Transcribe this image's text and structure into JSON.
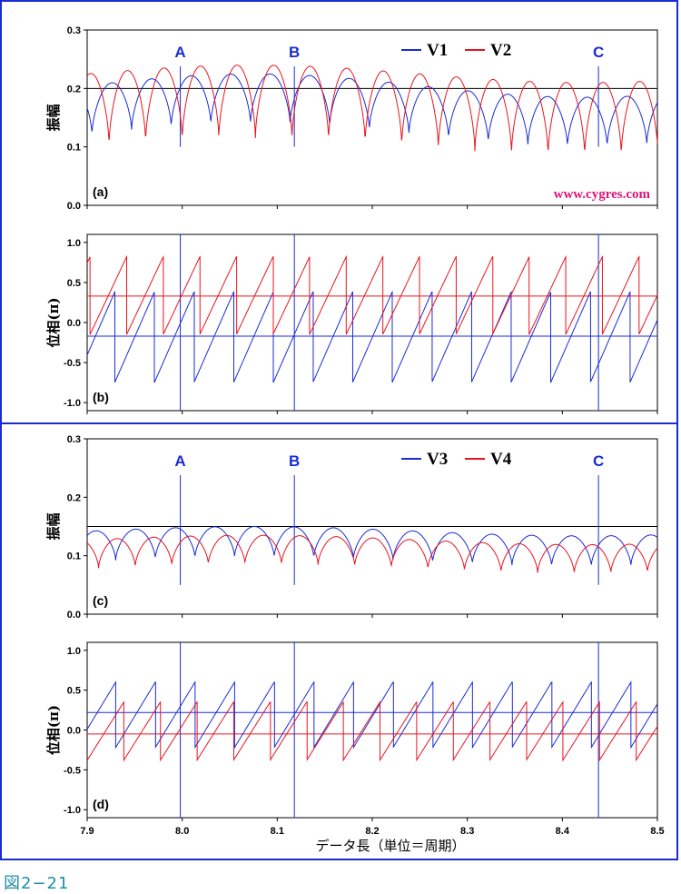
{
  "figure_caption": "図2−21",
  "watermark": "www.cygres.com",
  "x_label": "データ長（単位＝周期）",
  "x_ticks": [
    "7.9",
    "8.0",
    "8.1",
    "8.2",
    "8.3",
    "8.4",
    "8.5"
  ],
  "markers": [
    {
      "label": "A",
      "x": 7.998
    },
    {
      "label": "B",
      "x": 8.118
    },
    {
      "label": "C",
      "x": 8.438
    }
  ],
  "colors": {
    "blue": "#1a2bd6",
    "red": "#e8141e",
    "frame": "#1a2bd6",
    "ref": "#000000"
  },
  "chart_data": [
    {
      "type": "line",
      "panel_label": "(a)",
      "ylabel": "振幅",
      "xlim": [
        7.9,
        8.5
      ],
      "ylim": [
        0.0,
        0.3
      ],
      "y_ticks": [
        "0.0",
        "0.1",
        "0.2",
        "0.3"
      ],
      "ref_lines": [
        0.2
      ],
      "legend": [
        "V1",
        "V2"
      ],
      "series": [
        {
          "name": "V1",
          "color": "blue",
          "kind": "amplitude",
          "mean": 0.17,
          "amp": 0.035,
          "period": 0.0417,
          "phase": 7.905,
          "min": 0.12,
          "spread": 0.02
        },
        {
          "name": "V2",
          "color": "red",
          "kind": "amplitude",
          "mean": 0.17,
          "amp": 0.055,
          "period": 0.0385,
          "phase": 7.923,
          "min": 0.1,
          "spread": 0.015
        }
      ]
    },
    {
      "type": "line",
      "panel_label": "(b)",
      "ylabel": "位相(π)",
      "xlim": [
        7.9,
        8.5
      ],
      "ylim": [
        -1.1,
        1.1
      ],
      "y_ticks": [
        "-1.0",
        "-0.5",
        "0.0",
        "0.5",
        "1.0"
      ],
      "ref_lines": [
        0.33,
        -0.17
      ],
      "ref_colors": [
        "red",
        "blue"
      ],
      "series": [
        {
          "name": "V1",
          "color": "blue",
          "kind": "sawtooth",
          "low": -0.75,
          "high": 0.38,
          "period": 0.0417,
          "phase": 7.929
        },
        {
          "name": "V2",
          "color": "red",
          "kind": "sawtooth",
          "low": -0.15,
          "high": 0.82,
          "period": 0.0385,
          "phase": 7.903
        }
      ]
    },
    {
      "type": "line",
      "panel_label": "(c)",
      "ylabel": "振幅",
      "xlim": [
        7.9,
        8.5
      ],
      "ylim": [
        0.0,
        0.3
      ],
      "y_ticks": [
        "0.0",
        "0.1",
        "0.2",
        "0.3"
      ],
      "ref_lines": [
        0.15
      ],
      "legend": [
        "V3",
        "V4"
      ],
      "series": [
        {
          "name": "V3",
          "color": "blue",
          "kind": "amplitude",
          "mean": 0.12,
          "amp": 0.022,
          "period": 0.0417,
          "phase": 7.93,
          "min": 0.09,
          "spread": 0.008
        },
        {
          "name": "V4",
          "color": "red",
          "kind": "amplitude",
          "mean": 0.105,
          "amp": 0.022,
          "period": 0.0385,
          "phase": 7.912,
          "min": 0.078,
          "spread": 0.008
        }
      ]
    },
    {
      "type": "line",
      "panel_label": "(d)",
      "ylabel": "位相(π)",
      "xlim": [
        7.9,
        8.5
      ],
      "ylim": [
        -1.1,
        1.1
      ],
      "y_ticks": [
        "-1.0",
        "-0.5",
        "0.0",
        "0.5",
        "1.0"
      ],
      "ref_lines": [
        0.22,
        -0.05
      ],
      "ref_colors": [
        "blue",
        "red"
      ],
      "series": [
        {
          "name": "V3",
          "color": "blue",
          "kind": "sawtooth",
          "low": -0.22,
          "high": 0.6,
          "period": 0.0417,
          "phase": 7.93
        },
        {
          "name": "V4",
          "color": "red",
          "kind": "sawtooth",
          "low": -0.38,
          "high": 0.35,
          "period": 0.0385,
          "phase": 7.9
        }
      ]
    }
  ]
}
